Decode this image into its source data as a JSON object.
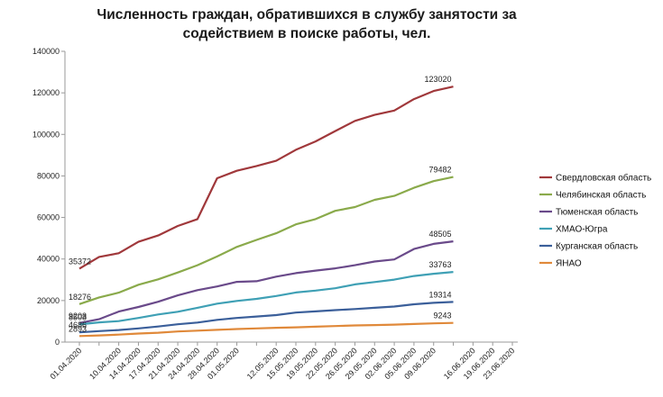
{
  "chart_data": {
    "type": "line",
    "title": "Численность граждан, обратившихся в службу занятости за содействием в поиске работы, чел.",
    "xlabel": "",
    "ylabel": "",
    "ylim": [
      0,
      140000
    ],
    "yticks": [
      "0",
      "20000",
      "40000",
      "60000",
      "80000",
      "100000",
      "120000",
      "140000"
    ],
    "grid": false,
    "legend_position": "right",
    "x": [
      "01.04.2020",
      "07.04.2020",
      "10.04.2020",
      "14.04.2020",
      "17.04.2020",
      "21.04.2020",
      "24.04.2020",
      "28.04.2020",
      "01.05.2020",
      "08.05.2020",
      "12.05.2020",
      "15.05.2020",
      "19.05.2020",
      "22.05.2020",
      "26.05.2020",
      "29.05.2020",
      "02.06.2020",
      "05.06.2020",
      "09.06.2020",
      "12.06.2020",
      "16.06.2020",
      "19.06.2020",
      "23.06.2020"
    ],
    "xtick_labels": [
      "01.04.2020",
      "",
      "10.04.2020",
      "14.04.2020",
      "17.04.2020",
      "21.04.2020",
      "24.04.2020",
      "28.04.2020",
      "01.05.2020",
      "",
      "12.05.2020",
      "15.05.2020",
      "19.05.2020",
      "22.05.2020",
      "26.05.2020",
      "29.05.2020",
      "02.06.2020",
      "05.06.2020",
      "09.06.2020",
      "",
      "16.06.2020",
      "19.06.2020",
      "23.06.2020"
    ],
    "series": [
      {
        "name": "Свердловская область",
        "color": "#a0383b",
        "values": [
          35372,
          41000,
          42800,
          48300,
          51300,
          55900,
          59200,
          78900,
          82500,
          84800,
          87300,
          92600,
          96600,
          101600,
          106500,
          109400,
          111500,
          117000,
          120900,
          123020,
          null,
          null,
          null
        ],
        "labels": {
          "0": "35372",
          "19": "123020"
        }
      },
      {
        "name": "Челябинская область",
        "color": "#8aaa4b",
        "values": [
          18276,
          21500,
          23800,
          27600,
          30200,
          33500,
          37000,
          41200,
          45800,
          49200,
          52400,
          56700,
          59200,
          63200,
          65000,
          68500,
          70400,
          74300,
          77500,
          79482,
          null,
          null,
          null
        ],
        "labels": {
          "0": "18276",
          "19": "79482"
        }
      },
      {
        "name": "Тюменская область",
        "color": "#6a4a8a",
        "values": [
          9203,
          11000,
          14700,
          16900,
          19400,
          22500,
          25000,
          26800,
          29000,
          29300,
          31500,
          33200,
          34400,
          35500,
          37000,
          38800,
          39800,
          44800,
          47300,
          48505,
          null,
          null,
          null
        ],
        "labels": {
          "0": "9203",
          "19": "48505"
        }
      },
      {
        "name": "ХМАО-Югра",
        "color": "#3fa0b5",
        "values": [
          8508,
          9500,
          10100,
          11600,
          13300,
          14600,
          16500,
          18500,
          19800,
          20800,
          22200,
          23900,
          24800,
          25900,
          27800,
          28900,
          30100,
          31800,
          32900,
          33763,
          null,
          null,
          null
        ],
        "labels": {
          "0": "8508",
          "19": "33763"
        }
      },
      {
        "name": "Курганская область",
        "color": "#3b5f9a",
        "values": [
          4686,
          5300,
          5800,
          6600,
          7500,
          8600,
          9400,
          10700,
          11600,
          12300,
          13000,
          14200,
          14800,
          15400,
          15900,
          16500,
          17100,
          18200,
          18900,
          19314,
          null,
          null,
          null
        ],
        "labels": {
          "0": "4686",
          "19": "19314"
        }
      },
      {
        "name": "ЯНАО",
        "color": "#e0893a",
        "values": [
          2893,
          3200,
          3600,
          4100,
          4500,
          5100,
          5500,
          5900,
          6300,
          6600,
          6900,
          7100,
          7400,
          7700,
          8000,
          8200,
          8400,
          8700,
          9000,
          9243,
          null,
          null,
          null
        ],
        "labels": {
          "0": "2893",
          "19": "9243"
        }
      }
    ]
  }
}
